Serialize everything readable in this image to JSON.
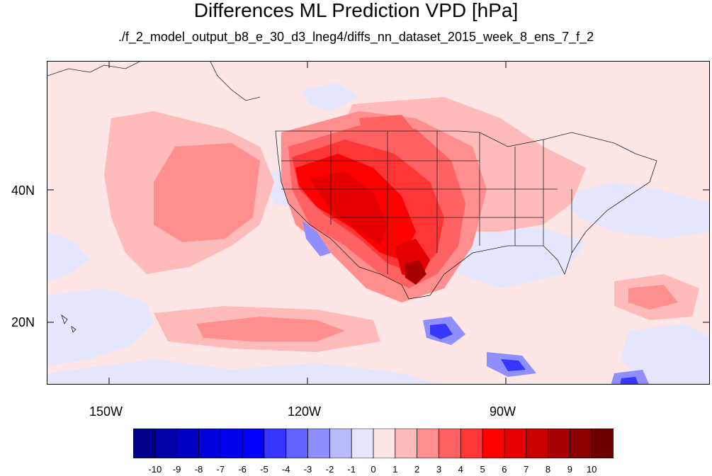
{
  "title": "Differences ML Prediction VPD [hPa]",
  "subtitle": "./f_2_model_output_b8_e_30_d3_lneg4/diffs_nn_dataset_2015_week_8_ens_7_f_2",
  "map": {
    "lat_labels": [
      "40N",
      "20N"
    ],
    "lon_labels": [
      "150W",
      "120W",
      "90W"
    ]
  },
  "colorbar": {
    "labels": [
      "-10",
      "-9",
      "-8",
      "-7",
      "-6",
      "-5",
      "-4",
      "-3",
      "-2",
      "-1",
      "0",
      "1",
      "2",
      "3",
      "4",
      "5",
      "6",
      "7",
      "8",
      "9",
      "10"
    ],
    "colors": [
      "#00008a",
      "#0000a8",
      "#0000c2",
      "#0000dc",
      "#0000f0",
      "#0000ff",
      "#3636ff",
      "#6262ff",
      "#8e8eff",
      "#babaff",
      "#e6e6ff",
      "#ffe6e6",
      "#ffbaba",
      "#ff8e8e",
      "#ff6262",
      "#ff3636",
      "#ff0000",
      "#e40000",
      "#c80000",
      "#a80000",
      "#8a0000",
      "#6e0000"
    ]
  }
}
